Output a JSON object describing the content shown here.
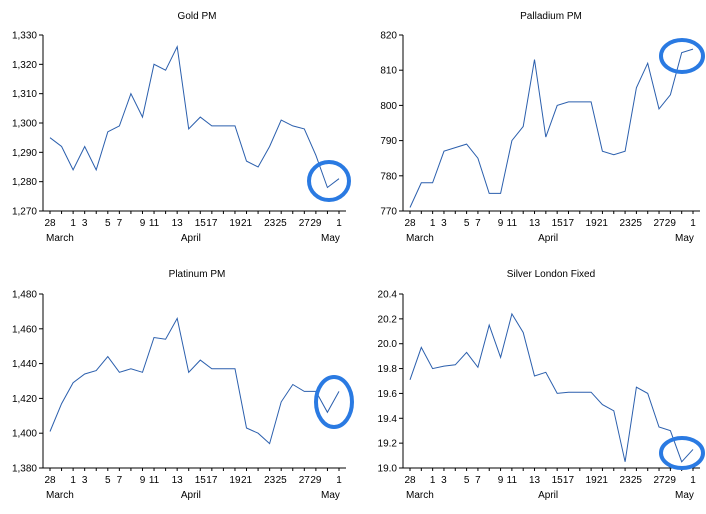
{
  "chart_data": [
    {
      "type": "line",
      "title": "Gold PM",
      "ylim": [
        1270,
        1330
      ],
      "yticks": [
        1270,
        1280,
        1290,
        1300,
        1310,
        1320,
        1330
      ],
      "ytick_labels": [
        "1,270",
        "1,280",
        "1,290",
        "1,300",
        "1,310",
        "1,320",
        "1,330"
      ],
      "xtick_labels": [
        "28",
        "1",
        "3",
        "5",
        "7",
        "9",
        "11",
        "13",
        "15",
        "17",
        "19",
        "21",
        "23",
        "25",
        "27",
        "29",
        "1"
      ],
      "month_labels": [
        "March",
        "April",
        "May"
      ],
      "series": [
        {
          "values": [
            1295,
            1292,
            1284,
            1292,
            1284,
            1297,
            1299,
            1310,
            1302,
            1320,
            1318,
            1326,
            1298,
            1302,
            1299,
            1299,
            1299,
            1287,
            1285,
            1292,
            1301,
            1299,
            1298,
            1289,
            1278,
            1281
          ],
          "color": "#2b5fad"
        }
      ],
      "highlight_color": "#2a7ae2"
    },
    {
      "type": "line",
      "title": "Palladium PM",
      "ylim": [
        770,
        820
      ],
      "yticks": [
        770,
        780,
        790,
        800,
        810,
        820
      ],
      "ytick_labels": [
        "770",
        "780",
        "790",
        "800",
        "810",
        "820"
      ],
      "xtick_labels": [
        "28",
        "1",
        "3",
        "5",
        "7",
        "9",
        "11",
        "13",
        "15",
        "17",
        "19",
        "21",
        "23",
        "25",
        "27",
        "29",
        "1"
      ],
      "month_labels": [
        "March",
        "April",
        "May"
      ],
      "series": [
        {
          "values": [
            771,
            778,
            778,
            787,
            788,
            789,
            785,
            775,
            775,
            790,
            794,
            813,
            791,
            800,
            801,
            801,
            801,
            787,
            786,
            787,
            805,
            812,
            799,
            803,
            815,
            816
          ],
          "color": "#2b5fad"
        }
      ],
      "highlight_color": "#2a7ae2"
    },
    {
      "type": "line",
      "title": "Platinum PM",
      "ylim": [
        1380,
        1480
      ],
      "yticks": [
        1380,
        1400,
        1420,
        1440,
        1460,
        1480
      ],
      "ytick_labels": [
        "1,380",
        "1,400",
        "1,420",
        "1,440",
        "1,460",
        "1,480"
      ],
      "xtick_labels": [
        "28",
        "1",
        "3",
        "5",
        "7",
        "9",
        "11",
        "13",
        "15",
        "17",
        "19",
        "21",
        "23",
        "25",
        "27",
        "29",
        "1"
      ],
      "month_labels": [
        "March",
        "April",
        "May"
      ],
      "series": [
        {
          "values": [
            1401,
            1417,
            1429,
            1434,
            1436,
            1444,
            1435,
            1437,
            1435,
            1455,
            1454,
            1466,
            1435,
            1442,
            1437,
            1437,
            1437,
            1403,
            1400,
            1394,
            1418,
            1428,
            1424,
            1424,
            1412,
            1424
          ],
          "color": "#2b5fad"
        }
      ],
      "highlight_color": "#2a7ae2"
    },
    {
      "type": "line",
      "title": "Silver London Fixed",
      "ylim": [
        19.0,
        20.4
      ],
      "yticks": [
        19.0,
        19.2,
        19.4,
        19.6,
        19.8,
        20.0,
        20.2,
        20.4
      ],
      "ytick_labels": [
        "19.0",
        "19.2",
        "19.4",
        "19.6",
        "19.8",
        "20.0",
        "20.2",
        "20.4"
      ],
      "xtick_labels": [
        "28",
        "1",
        "3",
        "5",
        "7",
        "9",
        "11",
        "13",
        "15",
        "17",
        "19",
        "21",
        "23",
        "25",
        "27",
        "29",
        "1"
      ],
      "month_labels": [
        "March",
        "April",
        "May"
      ],
      "series": [
        {
          "values": [
            19.71,
            19.97,
            19.8,
            19.82,
            19.83,
            19.93,
            19.81,
            20.15,
            19.89,
            20.24,
            20.09,
            19.74,
            19.77,
            19.6,
            19.61,
            19.61,
            19.61,
            19.51,
            19.46,
            19.05,
            19.65,
            19.6,
            19.33,
            19.3,
            19.05,
            19.15
          ],
          "color": "#2b5fad"
        }
      ],
      "highlight_color": "#2a7ae2"
    }
  ]
}
